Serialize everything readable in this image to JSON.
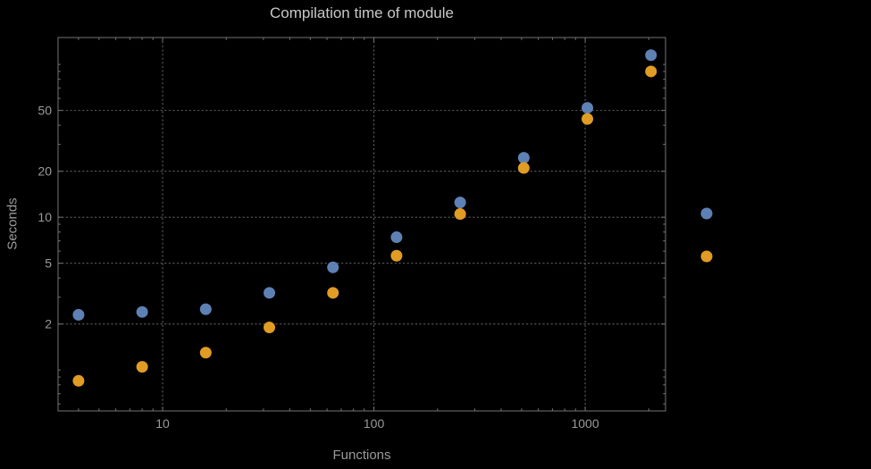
{
  "chart_data": {
    "type": "scatter",
    "title": "Compilation time of module",
    "xlabel": "Functions",
    "ylabel": "Seconds",
    "x_scale": "log",
    "y_scale": "log",
    "x": [
      4,
      8,
      16,
      32,
      64,
      128,
      256,
      512,
      1024,
      2048
    ],
    "series": [
      {
        "name": "blue",
        "color": "#5E81B5",
        "values": [
          2.3,
          2.4,
          2.5,
          3.2,
          4.7,
          7.4,
          12.5,
          24.5,
          52,
          115
        ]
      },
      {
        "name": "orange",
        "color": "#E19C24",
        "values": [
          0.85,
          1.05,
          1.3,
          1.9,
          3.2,
          5.6,
          10.5,
          21,
          44,
          90
        ]
      }
    ],
    "x_ticks": [
      10,
      100,
      1000
    ],
    "y_ticks": [
      2,
      5,
      10,
      20,
      50
    ],
    "xlim": [
      3.2,
      2400
    ],
    "ylim": [
      0.54,
      150
    ],
    "grid": "dotted",
    "legend_position": "right-outside",
    "legend_markers": [
      {
        "color": "#5E81B5"
      },
      {
        "color": "#E19C24"
      }
    ]
  },
  "colors": {
    "background": "#000000",
    "frame": "#757575",
    "grid": "#5c5c5c",
    "tick_labels": "#9a9a9a",
    "title": "#c8c8c8",
    "axis_labels": "#9a9a9a"
  }
}
